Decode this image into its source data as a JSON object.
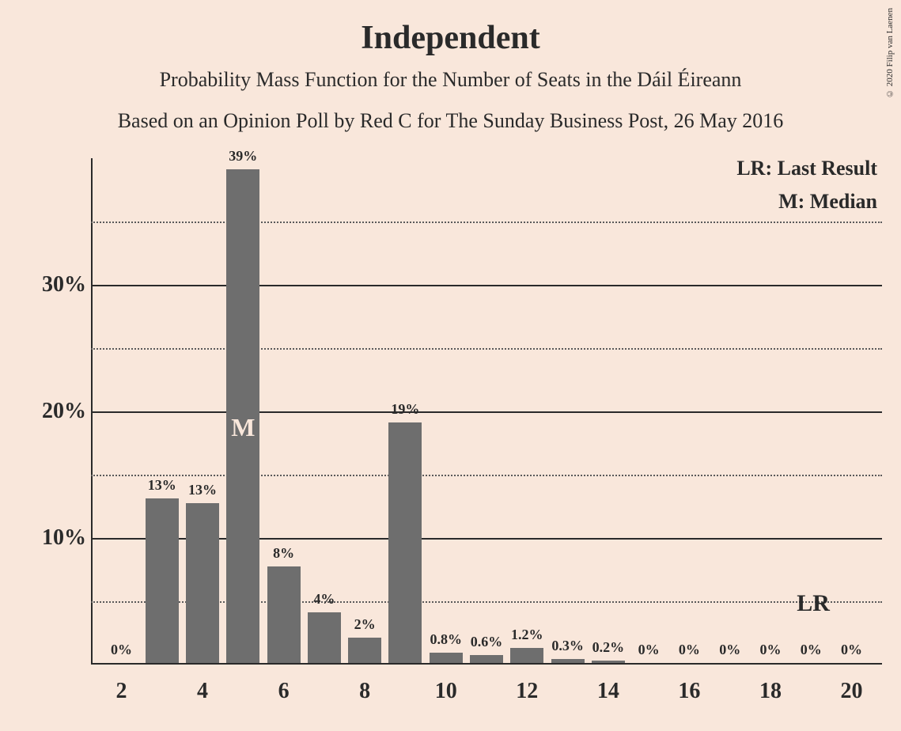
{
  "title": "Independent",
  "subtitle1": "Probability Mass Function for the Number of Seats in the Dáil Éireann",
  "subtitle2": "Based on an Opinion Poll by Red C for The Sunday Business Post, 26 May 2016",
  "copyright": "© 2020 Filip van Laenen",
  "legend": {
    "lr": "LR: Last Result",
    "median": "M: Median"
  },
  "lr_marker": "LR",
  "median_marker": "M",
  "chart": {
    "type": "bar",
    "background_color": "#f9e7db",
    "bar_color": "#6e6e6e",
    "text_color": "#2a2a2a",
    "grid_major_color": "#2a2a2a",
    "grid_minor_color": "#5a5a5a",
    "title_fontsize": 42,
    "subtitle_fontsize": 26,
    "tick_fontsize": 28,
    "barlabel_fontsize": 18,
    "ylim": [
      0,
      40
    ],
    "y_major_ticks": [
      10,
      20,
      30
    ],
    "y_minor_ticks": [
      5,
      15,
      25,
      35
    ],
    "x_range": [
      2,
      20
    ],
    "x_tick_step": 2,
    "x_ticks": [
      2,
      4,
      6,
      8,
      10,
      12,
      14,
      16,
      18,
      20
    ],
    "bar_width_ratio": 0.82,
    "median_index": 5,
    "lr_index": 19,
    "bars": [
      {
        "x": 2,
        "value": 0,
        "label": "0%"
      },
      {
        "x": 3,
        "value": 13,
        "label": "13%"
      },
      {
        "x": 4,
        "value": 12.6,
        "label": "13%"
      },
      {
        "x": 5,
        "value": 39,
        "label": "39%"
      },
      {
        "x": 6,
        "value": 7.6,
        "label": "8%"
      },
      {
        "x": 7,
        "value": 4,
        "label": "4%"
      },
      {
        "x": 8,
        "value": 2,
        "label": "2%"
      },
      {
        "x": 9,
        "value": 19,
        "label": "19%"
      },
      {
        "x": 10,
        "value": 0.8,
        "label": "0.8%"
      },
      {
        "x": 11,
        "value": 0.6,
        "label": "0.6%"
      },
      {
        "x": 12,
        "value": 1.2,
        "label": "1.2%"
      },
      {
        "x": 13,
        "value": 0.3,
        "label": "0.3%"
      },
      {
        "x": 14,
        "value": 0.2,
        "label": "0.2%"
      },
      {
        "x": 15,
        "value": 0,
        "label": "0%"
      },
      {
        "x": 16,
        "value": 0,
        "label": "0%"
      },
      {
        "x": 17,
        "value": 0,
        "label": "0%"
      },
      {
        "x": 18,
        "value": 0,
        "label": "0%"
      },
      {
        "x": 19,
        "value": 0,
        "label": "0%"
      },
      {
        "x": 20,
        "value": 0,
        "label": "0%"
      }
    ]
  }
}
